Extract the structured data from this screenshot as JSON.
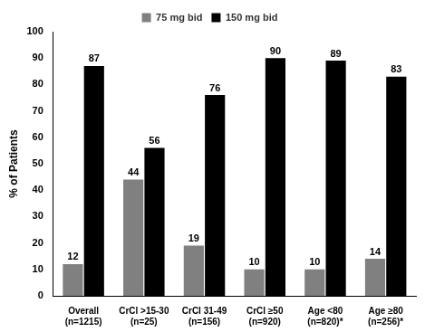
{
  "chart_data": {
    "type": "bar",
    "y_label": "% of Patients",
    "categories": [
      [
        "Overall",
        "(n=1215)"
      ],
      [
        "CrCl >15-30",
        "(n=25)"
      ],
      [
        "CrCl 31-49",
        "(n=156)"
      ],
      [
        "CrCl ≥50",
        "(n=920)"
      ],
      [
        "Age <80",
        "(n=820)*"
      ],
      [
        "Age ≥80",
        "(n=256)*"
      ]
    ],
    "series": [
      {
        "name": "75 mg bid",
        "color": "#808080",
        "values": [
          12,
          44,
          19,
          10,
          10,
          14
        ]
      },
      {
        "name": "150 mg bid",
        "color": "#000000",
        "values": [
          87,
          56,
          76,
          90,
          89,
          83
        ]
      }
    ],
    "ylim": [
      0,
      100
    ],
    "yticks": [
      0,
      10,
      20,
      30,
      40,
      50,
      60,
      70,
      80,
      90,
      100
    ],
    "grid": false,
    "legend": "top",
    "data_labels": true
  }
}
